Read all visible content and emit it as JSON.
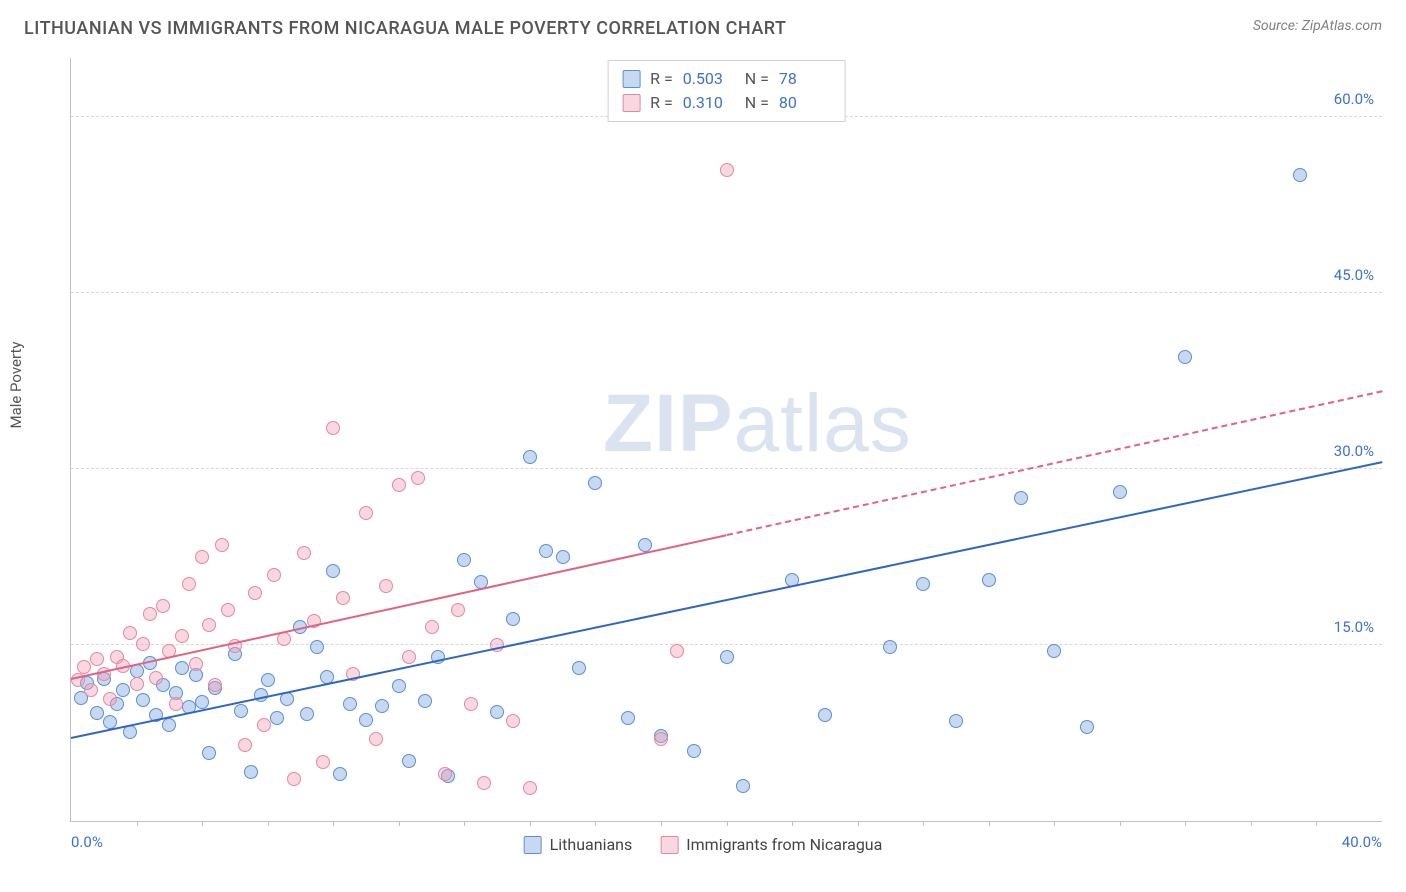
{
  "header": {
    "title": "LITHUANIAN VS IMMIGRANTS FROM NICARAGUA MALE POVERTY CORRELATION CHART",
    "source": "Source: ZipAtlas.com"
  },
  "ylabel": "Male Poverty",
  "watermark": {
    "part1": "ZIP",
    "part2": "atlas"
  },
  "axes": {
    "xlim": [
      0,
      40
    ],
    "ylim": [
      0,
      65
    ],
    "yticks": [
      {
        "value": 15,
        "label": "15.0%"
      },
      {
        "value": 30,
        "label": "30.0%"
      },
      {
        "value": 45,
        "label": "45.0%"
      },
      {
        "value": 60,
        "label": "60.0%"
      }
    ],
    "xticks": [
      {
        "value": 0,
        "label": "0.0%"
      },
      {
        "value": 40,
        "label": "40.0%"
      }
    ],
    "xtick_marks": [
      2,
      4,
      6,
      8,
      10,
      12,
      14,
      16,
      18,
      20,
      22,
      24,
      26,
      28,
      30,
      32,
      34,
      36,
      38
    ],
    "grid_color": "#d8d8d8",
    "axis_color": "#c0c0c0",
    "tick_label_color": "#3d72c9",
    "tick_fontsize": 15
  },
  "series": [
    {
      "name": "Lithuanians",
      "key": "lithuanians",
      "fill": "rgba(130,170,225,0.45)",
      "stroke": "#5b90d6",
      "marker_radius": 7,
      "r_label": "R =",
      "r_value": "0.503",
      "n_label": "N =",
      "n_value": "78",
      "trend": {
        "x1": 0,
        "y1": 7.0,
        "x2": 40,
        "y2": 30.5,
        "color": "#2f66c4",
        "width": 2.5,
        "dash": false
      },
      "points": [
        [
          0.3,
          10.5
        ],
        [
          0.5,
          11.8
        ],
        [
          0.8,
          9.2
        ],
        [
          1.0,
          12.1
        ],
        [
          1.2,
          8.4
        ],
        [
          1.4,
          10.0
        ],
        [
          1.6,
          11.2
        ],
        [
          1.8,
          7.6
        ],
        [
          2.0,
          12.8
        ],
        [
          2.2,
          10.3
        ],
        [
          2.4,
          13.5
        ],
        [
          2.6,
          9.0
        ],
        [
          2.8,
          11.6
        ],
        [
          3.0,
          8.2
        ],
        [
          3.2,
          10.9
        ],
        [
          3.4,
          13.0
        ],
        [
          3.6,
          9.7
        ],
        [
          3.8,
          12.4
        ],
        [
          4.0,
          10.1
        ],
        [
          4.2,
          5.8
        ],
        [
          4.4,
          11.3
        ],
        [
          5.0,
          14.2
        ],
        [
          5.2,
          9.4
        ],
        [
          5.5,
          4.2
        ],
        [
          5.8,
          10.7
        ],
        [
          6.0,
          12.0
        ],
        [
          6.3,
          8.8
        ],
        [
          6.6,
          10.4
        ],
        [
          7.0,
          16.5
        ],
        [
          7.2,
          9.1
        ],
        [
          7.5,
          14.8
        ],
        [
          7.8,
          12.3
        ],
        [
          8.0,
          21.3
        ],
        [
          8.2,
          4.0
        ],
        [
          8.5,
          10.0
        ],
        [
          9.0,
          8.6
        ],
        [
          9.5,
          9.8
        ],
        [
          10.0,
          11.5
        ],
        [
          10.3,
          5.1
        ],
        [
          10.8,
          10.2
        ],
        [
          11.2,
          14.0
        ],
        [
          11.5,
          3.8
        ],
        [
          12.0,
          22.2
        ],
        [
          12.5,
          20.4
        ],
        [
          13.0,
          9.3
        ],
        [
          13.5,
          17.2
        ],
        [
          14.0,
          31.0
        ],
        [
          14.5,
          23.0
        ],
        [
          15.0,
          22.5
        ],
        [
          15.5,
          13.0
        ],
        [
          16.0,
          28.8
        ],
        [
          17.0,
          8.8
        ],
        [
          17.5,
          23.5
        ],
        [
          18.0,
          7.2
        ],
        [
          19.0,
          6.0
        ],
        [
          20.0,
          14.0
        ],
        [
          20.5,
          3.0
        ],
        [
          22.0,
          20.5
        ],
        [
          23.0,
          9.0
        ],
        [
          25.0,
          14.8
        ],
        [
          26.0,
          20.2
        ],
        [
          27.0,
          8.5
        ],
        [
          28.0,
          20.5
        ],
        [
          29.0,
          27.5
        ],
        [
          30.0,
          14.5
        ],
        [
          31.0,
          8.0
        ],
        [
          32.0,
          28.0
        ],
        [
          34.0,
          39.5
        ],
        [
          37.5,
          55.0
        ]
      ]
    },
    {
      "name": "Immigrants from Nicaragua",
      "key": "nicaragua",
      "fill": "rgba(240,160,180,0.42)",
      "stroke": "#e388a3",
      "marker_radius": 7,
      "r_label": "R =",
      "r_value": "0.310",
      "n_label": "N =",
      "n_value": "80",
      "trend": {
        "x1": 0,
        "y1": 12.0,
        "x2": 40,
        "y2": 36.5,
        "color": "#e26184",
        "width": 2,
        "dash_after_x": 20
      },
      "points": [
        [
          0.2,
          12.0
        ],
        [
          0.4,
          13.1
        ],
        [
          0.6,
          11.2
        ],
        [
          0.8,
          13.8
        ],
        [
          1.0,
          12.5
        ],
        [
          1.2,
          10.4
        ],
        [
          1.4,
          14.0
        ],
        [
          1.6,
          13.2
        ],
        [
          1.8,
          16.0
        ],
        [
          2.0,
          11.7
        ],
        [
          2.2,
          15.1
        ],
        [
          2.4,
          17.6
        ],
        [
          2.6,
          12.2
        ],
        [
          2.8,
          18.3
        ],
        [
          3.0,
          14.5
        ],
        [
          3.2,
          10.0
        ],
        [
          3.4,
          15.8
        ],
        [
          3.6,
          20.2
        ],
        [
          3.8,
          13.4
        ],
        [
          4.0,
          22.5
        ],
        [
          4.2,
          16.7
        ],
        [
          4.4,
          11.6
        ],
        [
          4.6,
          23.5
        ],
        [
          4.8,
          18.0
        ],
        [
          5.0,
          14.9
        ],
        [
          5.3,
          6.5
        ],
        [
          5.6,
          19.4
        ],
        [
          5.9,
          8.2
        ],
        [
          6.2,
          21.0
        ],
        [
          6.5,
          15.5
        ],
        [
          6.8,
          3.6
        ],
        [
          7.1,
          22.8
        ],
        [
          7.4,
          17.0
        ],
        [
          7.7,
          5.0
        ],
        [
          8.0,
          33.5
        ],
        [
          8.3,
          19.0
        ],
        [
          8.6,
          12.5
        ],
        [
          9.0,
          26.2
        ],
        [
          9.3,
          7.0
        ],
        [
          9.6,
          20.0
        ],
        [
          10.0,
          28.6
        ],
        [
          10.3,
          14.0
        ],
        [
          10.6,
          29.2
        ],
        [
          11.0,
          16.5
        ],
        [
          11.4,
          4.0
        ],
        [
          11.8,
          18.0
        ],
        [
          12.2,
          10.0
        ],
        [
          12.6,
          3.2
        ],
        [
          13.0,
          15.0
        ],
        [
          13.5,
          8.5
        ],
        [
          14.0,
          2.8
        ],
        [
          18.0,
          7.0
        ],
        [
          18.5,
          14.5
        ],
        [
          20.0,
          55.5
        ]
      ]
    }
  ],
  "legend_bottom": [
    {
      "label": "Lithuanians",
      "fill": "rgba(130,170,225,0.45)",
      "stroke": "#5b90d6"
    },
    {
      "label": "Immigrants from Nicaragua",
      "fill": "rgba(240,160,180,0.42)",
      "stroke": "#e388a3"
    }
  ]
}
